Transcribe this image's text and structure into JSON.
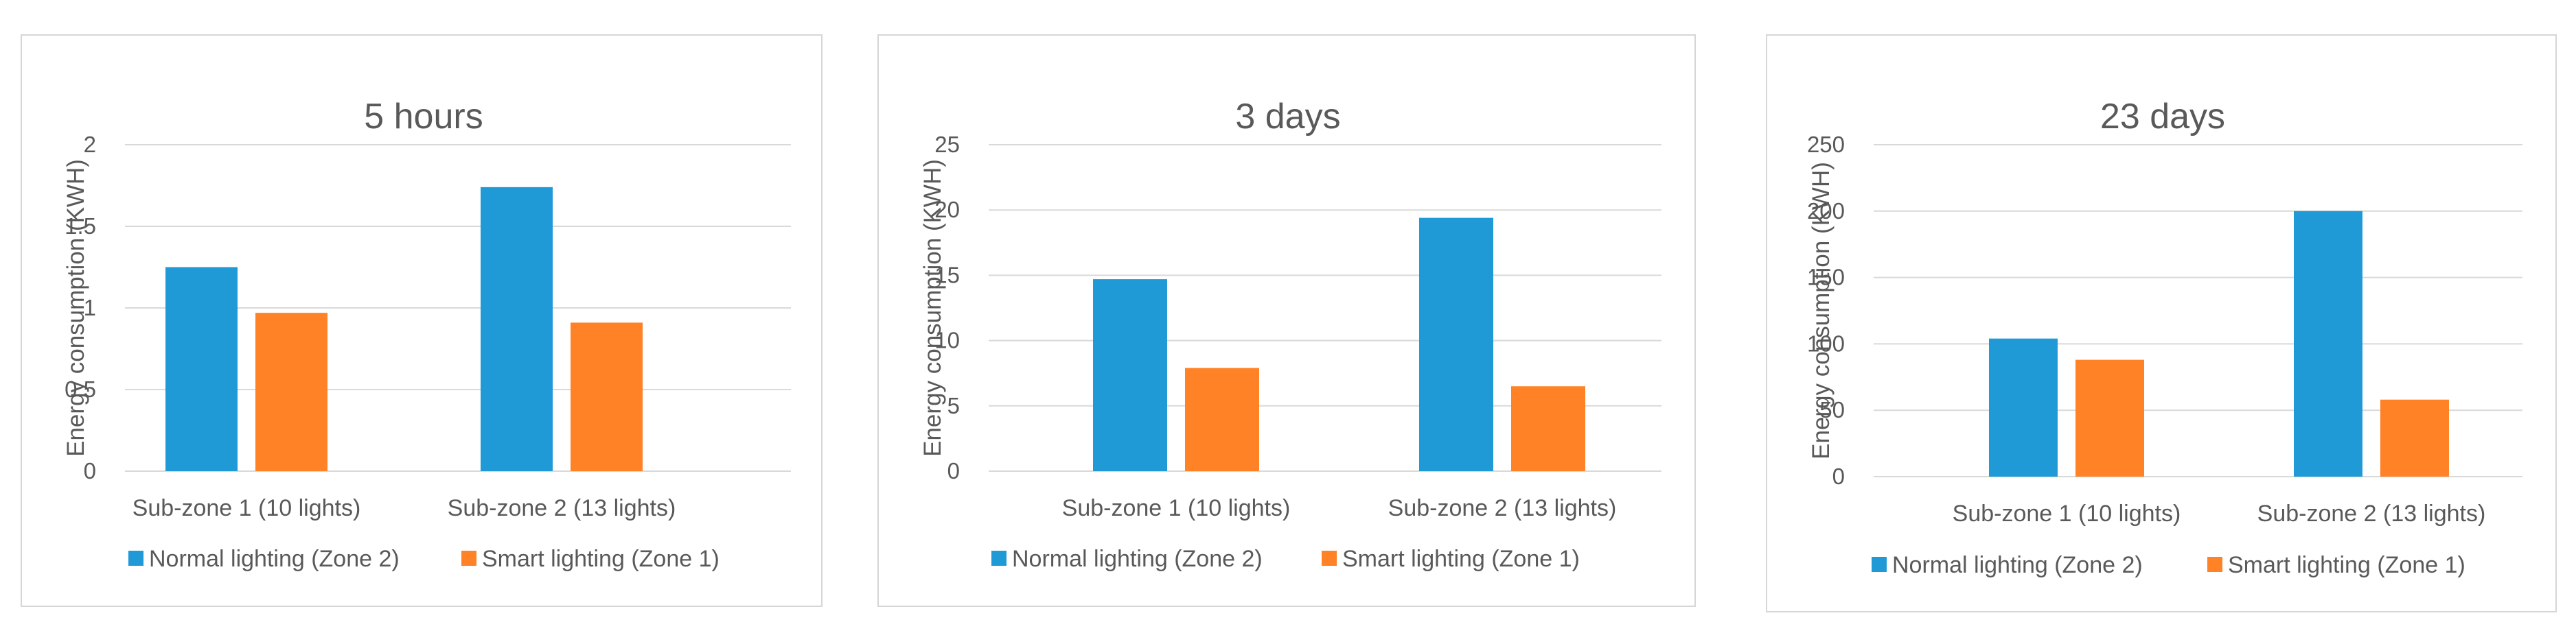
{
  "colors": {
    "normal": "#1f9ad7",
    "smart": "#ff8227"
  },
  "chart_data": [
    {
      "type": "bar",
      "title": "5 hours",
      "ylabel": "Energy consumption (KWH)",
      "xlabel": "",
      "categories": [
        "Sub-zone 1 (10 lights)",
        "Sub-zone 2 (13 lights)"
      ],
      "ylim": [
        0,
        2
      ],
      "yticks": [
        0,
        0.5,
        1,
        1.5,
        2
      ],
      "ytick_labels": [
        "0",
        "0.5",
        "1",
        "1.5",
        "2"
      ],
      "series": [
        {
          "name": "Normal lighting (Zone 2)",
          "values": [
            1.25,
            1.74
          ]
        },
        {
          "name": "Smart lighting (Zone 1)",
          "values": [
            0.97,
            0.91
          ]
        }
      ],
      "legend": "bottom"
    },
    {
      "type": "bar",
      "title": "3 days",
      "ylabel": "Energy consumption (KWH)",
      "xlabel": "",
      "categories": [
        "Sub-zone 1 (10 lights)",
        "Sub-zone 2 (13 lights)"
      ],
      "ylim": [
        0,
        25
      ],
      "yticks": [
        0,
        5,
        10,
        15,
        20,
        25
      ],
      "ytick_labels": [
        "0",
        "5",
        "10",
        "15",
        "20",
        "25"
      ],
      "series": [
        {
          "name": "Normal lighting (Zone 2)",
          "values": [
            14.7,
            19.4
          ]
        },
        {
          "name": "Smart lighting (Zone 1)",
          "values": [
            7.9,
            6.5
          ]
        }
      ],
      "legend": "bottom"
    },
    {
      "type": "bar",
      "title": "23 days",
      "ylabel": "Energy consumption (KWH)",
      "xlabel": "",
      "categories": [
        "Sub-zone 1 (10 lights)",
        "Sub-zone 2 (13 lights)"
      ],
      "ylim": [
        0,
        250
      ],
      "yticks": [
        0,
        50,
        100,
        150,
        200,
        250
      ],
      "ytick_labels": [
        "0",
        "50",
        "100",
        "150",
        "200",
        "250"
      ],
      "series": [
        {
          "name": "Normal lighting (Zone 2)",
          "values": [
            104,
            200
          ]
        },
        {
          "name": "Smart lighting (Zone 1)",
          "values": [
            88,
            58
          ]
        }
      ],
      "legend": "bottom"
    }
  ]
}
